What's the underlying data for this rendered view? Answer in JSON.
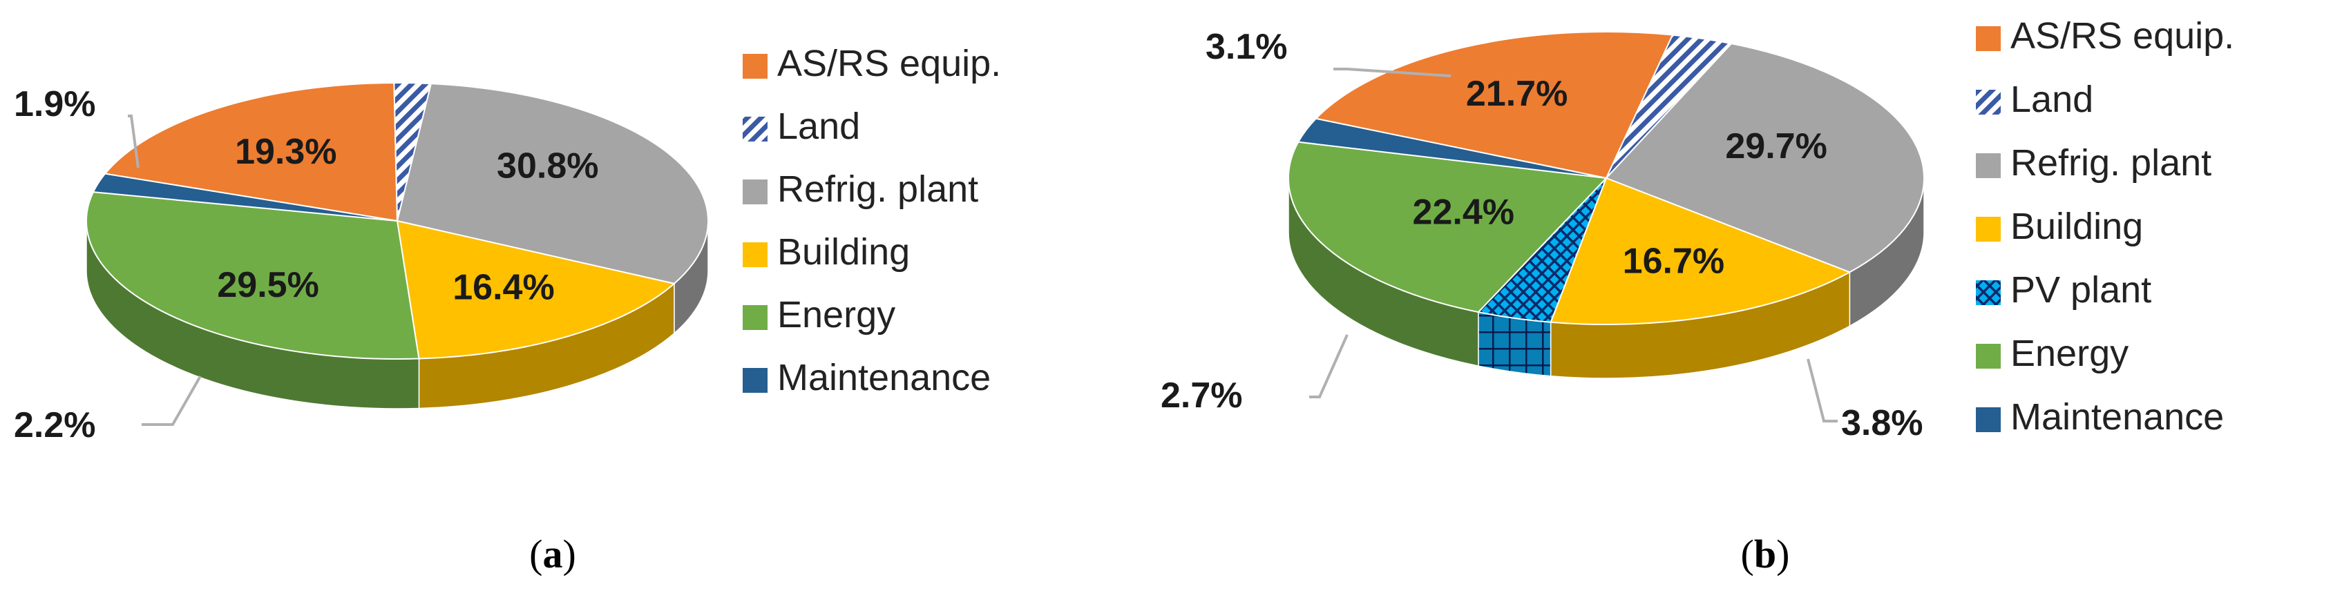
{
  "chart_data": [
    {
      "type": "pie",
      "title": "",
      "caption": {
        "open": "(",
        "letter": "a",
        "close": ")"
      },
      "slices": [
        {
          "label": "AS/RS equip.",
          "value": 19.3,
          "display": "19.3%",
          "color": "#ED7D31"
        },
        {
          "label": "Land",
          "value": 1.9,
          "display": "1.9%",
          "color": "#3B5AA5",
          "pattern": "hatch"
        },
        {
          "label": "Refrig. plant",
          "value": 30.8,
          "display": "30.8%",
          "color": "#A5A5A5"
        },
        {
          "label": "Building",
          "value": 16.4,
          "display": "16.4%",
          "color": "#FFC000"
        },
        {
          "label": "Energy",
          "value": 29.5,
          "display": "29.5%",
          "color": "#70AD47"
        },
        {
          "label": "Maintenance",
          "value": 2.2,
          "display": "2.2%",
          "color": "#255E91"
        }
      ],
      "legend": "right"
    },
    {
      "type": "pie",
      "title": "",
      "caption": {
        "open": "(",
        "letter": "b",
        "close": ")"
      },
      "slices": [
        {
          "label": "AS/RS equip.",
          "value": 21.7,
          "display": "21.7%",
          "color": "#ED7D31"
        },
        {
          "label": "Land",
          "value": 3.1,
          "display": "3.1%",
          "color": "#3B5AA5",
          "pattern": "hatch"
        },
        {
          "label": "Refrig. plant",
          "value": 29.7,
          "display": "29.7%",
          "color": "#A5A5A5"
        },
        {
          "label": "Building",
          "value": 16.7,
          "display": "16.7%",
          "color": "#FFC000"
        },
        {
          "label": "PV plant",
          "value": 3.8,
          "display": "3.8%",
          "color": "#00B0F0",
          "pattern": "grid"
        },
        {
          "label": "Energy",
          "value": 22.4,
          "display": "22.4%",
          "color": "#70AD47"
        },
        {
          "label": "Maintenance",
          "value": 2.7,
          "display": "2.7%",
          "color": "#255E91"
        }
      ],
      "legend": "right"
    }
  ]
}
